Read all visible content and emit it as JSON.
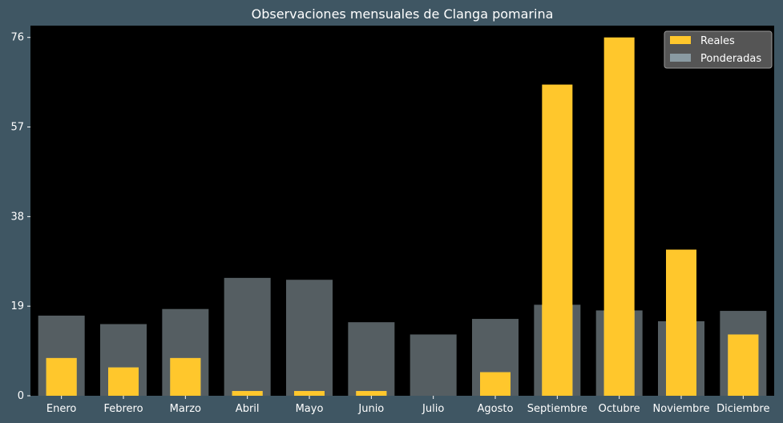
{
  "colors": {
    "background": "#3f5663",
    "plot_background": "#000000",
    "text": "#ffffff",
    "reales": "#ffc72c",
    "ponderadas": "#aabbc3",
    "overlap": "#d6d18a",
    "legend_background": "#555555"
  },
  "chart_data": {
    "type": "bar",
    "title": "Observaciones mensuales de Clanga pomarina",
    "xlabel": "",
    "ylabel": "",
    "categories": [
      "Enero",
      "Febrero",
      "Marzo",
      "Abril",
      "Mayo",
      "Junio",
      "Julio",
      "Agosto",
      "Septiembre",
      "Octubre",
      "Noviembre",
      "Diciembre"
    ],
    "series": [
      {
        "name": "Reales",
        "values": [
          8,
          6,
          8,
          1,
          1,
          1,
          0,
          5,
          66,
          76,
          31,
          13
        ]
      },
      {
        "name": "Ponderadas",
        "values": [
          17,
          15.2,
          18.4,
          25,
          24.6,
          15.6,
          13,
          16.3,
          19.3,
          18.1,
          15.8,
          18
        ]
      }
    ],
    "yticks": [
      0,
      19,
      38,
      57,
      76
    ],
    "ylim": [
      0,
      78.5
    ],
    "grid": false,
    "legend_position": "top-right"
  }
}
